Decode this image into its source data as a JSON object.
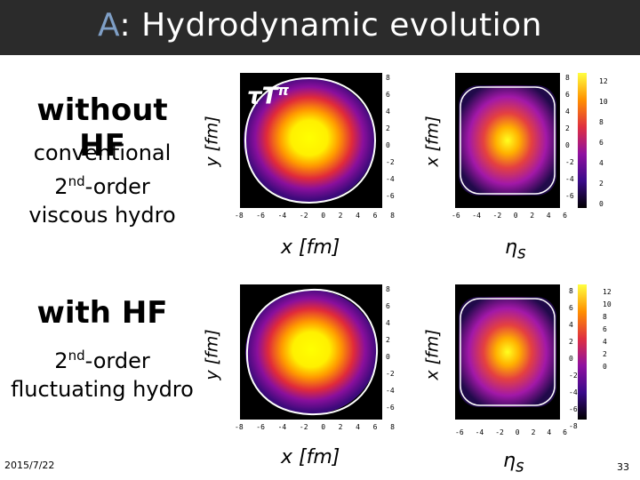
{
  "header": {
    "title_accent": "A",
    "title_rest": ": Hydrodynamic evolution"
  },
  "left": {
    "case1_title": "without HF",
    "case1_sub1": "conventional",
    "case1_sub2_pre": "2",
    "case1_sub2_sup": "nd",
    "case1_sub2_post": "-order",
    "case1_sub3": "viscous hydro",
    "case2_title": "with HF",
    "case2_sub1_pre": "2",
    "case2_sub1_sup": "nd",
    "case2_sub1_post": "-order",
    "case2_sub2": "fluctuating hydro"
  },
  "plots": {
    "quantity_label": "τT",
    "quantity_sup": "π",
    "y_label": "y [fm]",
    "x_label": "x [fm]",
    "eta_label": "η",
    "eta_sub": "s",
    "ticks_xy": [
      "-8",
      "-6",
      "-4",
      "-2",
      "0",
      "2",
      "4",
      "6",
      "8"
    ],
    "ticks_eta_x": [
      "-6",
      "-4",
      "-2",
      "0",
      "2",
      "4",
      "6"
    ],
    "ticks_right_y": [
      "8",
      "6",
      "4",
      "2",
      "0",
      "-2",
      "-4",
      "-6",
      "-8"
    ],
    "colorbar_top": [
      "12",
      "10",
      "8",
      "6",
      "4",
      "2",
      "0"
    ],
    "colorbar_bottom": [
      "12",
      "10",
      "8",
      "6",
      "4",
      "2",
      "0"
    ]
  },
  "footer": {
    "date": "2015/7/22",
    "page": "33"
  }
}
